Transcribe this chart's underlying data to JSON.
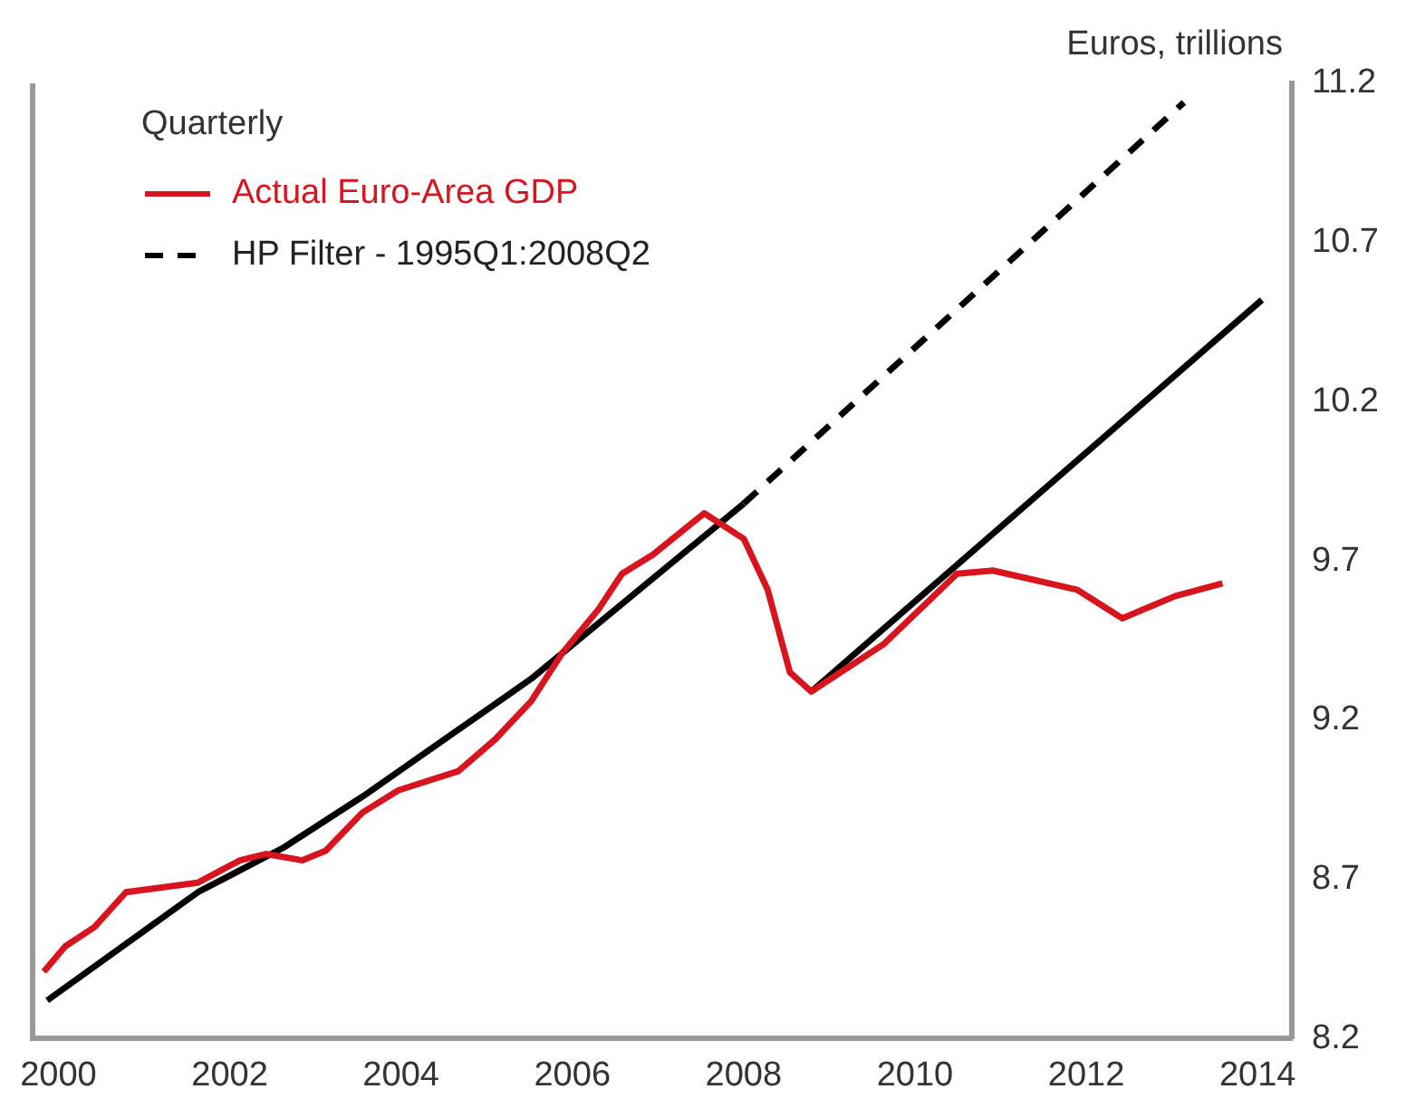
{
  "chart_data": {
    "type": "line",
    "ylabel": "Euros, trillions",
    "legend_title": "Quarterly",
    "legend": "top left",
    "grid": false,
    "marker": "none",
    "xlim": [
      1999.7,
      2014.4
    ],
    "xticks": [
      2000,
      2002,
      2004,
      2006,
      2008,
      2010,
      2012,
      2014
    ],
    "ylim": [
      8.2,
      11.2
    ],
    "yticks": [
      8.2,
      8.7,
      9.2,
      9.7,
      10.2,
      10.7,
      11.2
    ],
    "series": [
      {
        "name": "Actual Euro-Area GDP",
        "color": "#d8141e",
        "line_style": "solid",
        "x": [
          1999.83,
          2000.08,
          2000.42,
          2000.79,
          2001.63,
          2002.12,
          2002.42,
          2002.85,
          2003.12,
          2003.55,
          2003.97,
          2004.67,
          2005.1,
          2005.52,
          2005.88,
          2006.31,
          2006.58,
          2006.94,
          2007.54,
          2008.0,
          2008.28,
          2008.54,
          2008.79,
          2009.64,
          2010.49,
          2010.91,
          2011.89,
          2012.42,
          2013.04,
          2013.59
        ],
        "values": [
          8.41,
          8.49,
          8.55,
          8.66,
          8.69,
          8.76,
          8.78,
          8.76,
          8.79,
          8.91,
          8.98,
          9.04,
          9.14,
          9.26,
          9.41,
          9.55,
          9.66,
          9.72,
          9.85,
          9.77,
          9.61,
          9.35,
          9.29,
          9.44,
          9.66,
          9.67,
          9.61,
          9.52,
          9.59,
          9.63
        ]
      },
      {
        "name": "HP Filter - 1995Q1:2008Q2",
        "color": "#000000",
        "line_style": "dashed",
        "x": [
          2008.0,
          2013.14
        ],
        "values": [
          9.88,
          11.14
        ]
      },
      {
        "color": "#000000",
        "line_style": "solid",
        "x": [
          1999.87,
          2001.63,
          2002.63,
          2003.55,
          2005.52,
          2008.0
        ],
        "values": [
          8.32,
          8.66,
          8.8,
          8.96,
          9.33,
          9.88
        ]
      },
      {
        "color": "#000000",
        "line_style": "solid",
        "x": [
          2008.79,
          2014.05
        ],
        "values": [
          9.29,
          10.52
        ]
      }
    ]
  }
}
